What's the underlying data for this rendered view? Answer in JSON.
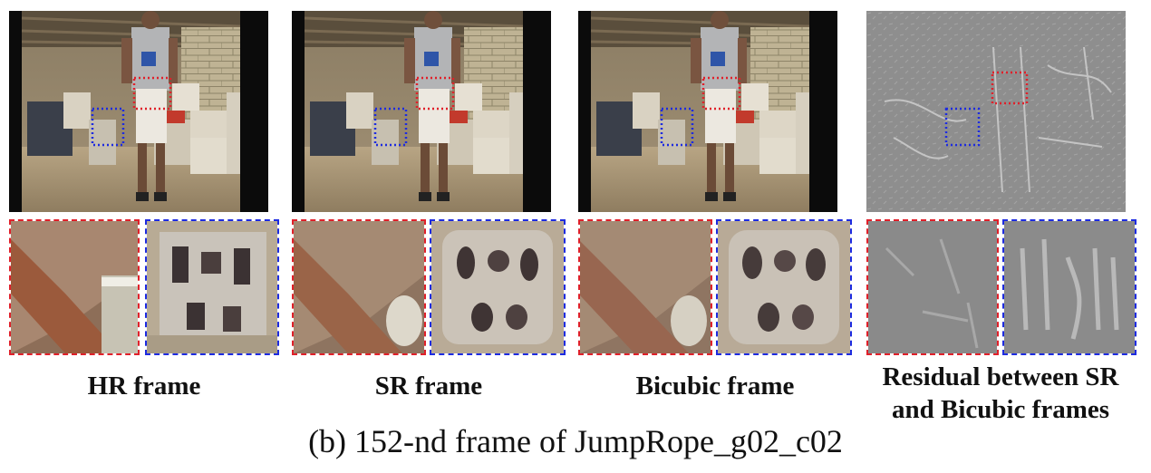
{
  "figure": {
    "panels": [
      {
        "label": "HR frame"
      },
      {
        "label": "SR frame"
      },
      {
        "label": "Bicubic frame"
      },
      {
        "label_line1": "Residual between SR",
        "label_line2": "and Bicubic frames"
      }
    ],
    "caption": "(b)  152-nd frame of JumpRope_g02_c02",
    "colors": {
      "red_box": "#e0202a",
      "blue_box": "#1d2be0"
    }
  }
}
